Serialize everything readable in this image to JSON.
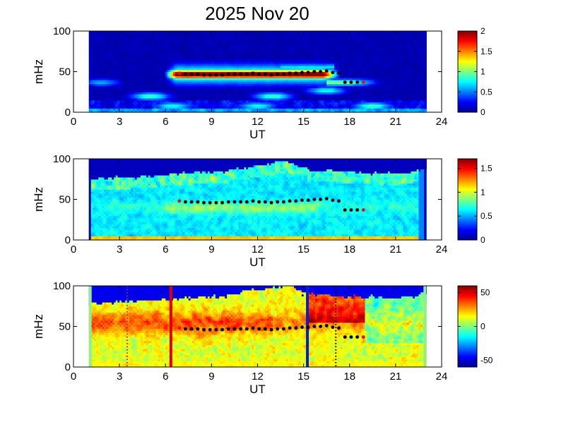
{
  "title": "2025 Nov 20",
  "chart_data": [
    {
      "type": "heatmap",
      "panel": "power",
      "xlabel": "UT",
      "ylabel": "mHz",
      "xlim": [
        0,
        24
      ],
      "ylim": [
        0,
        100
      ],
      "xticks": [
        "0",
        "3",
        "6",
        "9",
        "12",
        "15",
        "18",
        "21",
        "24"
      ],
      "yticks": [
        "0",
        "50",
        "100"
      ],
      "data_range_ut": [
        1,
        23
      ],
      "colorbar": {
        "range": [
          0,
          2
        ],
        "ticks": [
          "0",
          "0.5",
          "1",
          "1.5",
          "2"
        ]
      },
      "features": {
        "background_level": 0.1,
        "main_band": {
          "ut_start": 6.3,
          "ut_end": 17.2,
          "freq_center": 47,
          "peak_level": 2.0
        },
        "patches": [
          {
            "ut": 5,
            "freq": 20,
            "level": 0.9
          },
          {
            "ut": 13,
            "freq": 20,
            "level": 0.9
          },
          {
            "ut": 16.5,
            "freq": 27,
            "level": 0.8
          },
          {
            "ut": 6.5,
            "freq": 8,
            "level": 0.8
          },
          {
            "ut": 12,
            "freq": 8,
            "level": 0.8
          },
          {
            "ut": 19.5,
            "freq": 8,
            "level": 0.9
          },
          {
            "ut": 1.8,
            "freq": 37,
            "level": 0.6
          },
          {
            "ut": 18.5,
            "freq": 37,
            "level": 0.7
          }
        ]
      },
      "markers_ut": [
        6.9,
        7.3,
        7.7,
        8.1,
        8.5,
        8.9,
        9.3,
        9.7,
        10.1,
        10.5,
        10.9,
        11.3,
        11.7,
        12.1,
        12.5,
        12.9,
        13.3,
        13.7,
        14.1,
        14.5,
        14.9,
        15.3,
        15.7,
        16.1,
        16.5,
        16.9,
        17.3,
        17.7,
        18.1,
        18.5,
        18.9
      ],
      "markers_mhz": [
        48,
        47,
        47,
        47,
        46,
        46,
        46,
        46,
        47,
        47,
        47,
        47,
        48,
        47,
        47,
        46,
        47,
        47,
        48,
        48,
        49,
        49,
        50,
        50,
        51,
        49,
        48,
        37,
        37,
        37,
        37
      ]
    },
    {
      "type": "heatmap",
      "panel": "ratio",
      "xlabel": "UT",
      "ylabel": "mHz",
      "xlim": [
        0,
        24
      ],
      "ylim": [
        0,
        100
      ],
      "xticks": [
        "0",
        "3",
        "6",
        "9",
        "12",
        "15",
        "18",
        "21",
        "24"
      ],
      "yticks": [
        "0",
        "50",
        "100"
      ],
      "data_range_ut": [
        1,
        23
      ],
      "colorbar": {
        "range": [
          0,
          1.7
        ],
        "ticks": [
          "0",
          "0.5",
          "1",
          "1.5"
        ]
      },
      "features": {
        "background_level": 0.6,
        "upper_edge_mhz": [
          {
            "ut": 1,
            "mhz": 75
          },
          {
            "ut": 4,
            "mhz": 78
          },
          {
            "ut": 7,
            "mhz": 82
          },
          {
            "ut": 10,
            "mhz": 85
          },
          {
            "ut": 12,
            "mhz": 92
          },
          {
            "ut": 14,
            "mhz": 98
          },
          {
            "ut": 15,
            "mhz": 88
          },
          {
            "ut": 18,
            "mhz": 84
          },
          {
            "ut": 21,
            "mhz": 82
          },
          {
            "ut": 23,
            "mhz": 88
          }
        ]
      },
      "markers_ut": [
        6.9,
        7.3,
        7.7,
        8.1,
        8.5,
        8.9,
        9.3,
        9.7,
        10.1,
        10.5,
        10.9,
        11.3,
        11.7,
        12.1,
        12.5,
        12.9,
        13.3,
        13.7,
        14.1,
        14.5,
        14.9,
        15.3,
        15.7,
        16.1,
        16.5,
        16.9,
        17.3,
        17.7,
        18.1,
        18.5,
        18.9
      ],
      "markers_mhz": [
        48,
        47,
        47,
        47,
        46,
        46,
        46,
        46,
        47,
        47,
        47,
        47,
        48,
        47,
        47,
        46,
        47,
        47,
        48,
        48,
        49,
        49,
        50,
        50,
        51,
        49,
        48,
        37,
        37,
        37,
        37
      ]
    },
    {
      "type": "heatmap",
      "panel": "phase",
      "xlabel": "UT",
      "ylabel": "mHz",
      "xlim": [
        0,
        24
      ],
      "ylim": [
        0,
        100
      ],
      "xticks": [
        "0",
        "3",
        "6",
        "9",
        "12",
        "15",
        "18",
        "21",
        "24"
      ],
      "yticks": [
        "0",
        "50",
        "100"
      ],
      "data_range_ut": [
        1,
        23
      ],
      "colorbar": {
        "range": [
          -60,
          60
        ],
        "ticks": [
          "50",
          "0",
          "-50"
        ]
      },
      "vertical_lines": [
        {
          "ut": 3.5,
          "style": "dotted",
          "color": "#a03030"
        },
        {
          "ut": 6.35,
          "style": "solid",
          "color": "#e00000"
        },
        {
          "ut": 15.25,
          "style": "solid",
          "color": "#0020d0"
        },
        {
          "ut": 17.1,
          "style": "dotted",
          "color": "#000000"
        }
      ],
      "markers_ut": [
        6.9,
        7.3,
        7.7,
        8.1,
        8.5,
        8.9,
        9.3,
        9.7,
        10.1,
        10.5,
        10.9,
        11.3,
        11.7,
        12.1,
        12.5,
        12.9,
        13.3,
        13.7,
        14.1,
        14.5,
        14.9,
        15.3,
        15.7,
        16.1,
        16.5,
        16.9,
        17.3,
        17.7,
        18.1,
        18.5,
        18.9
      ],
      "markers_mhz": [
        48,
        47,
        47,
        47,
        46,
        46,
        46,
        46,
        47,
        47,
        47,
        47,
        48,
        47,
        47,
        46,
        47,
        47,
        48,
        48,
        49,
        49,
        50,
        50,
        51,
        49,
        48,
        37,
        37,
        37,
        37
      ]
    }
  ]
}
